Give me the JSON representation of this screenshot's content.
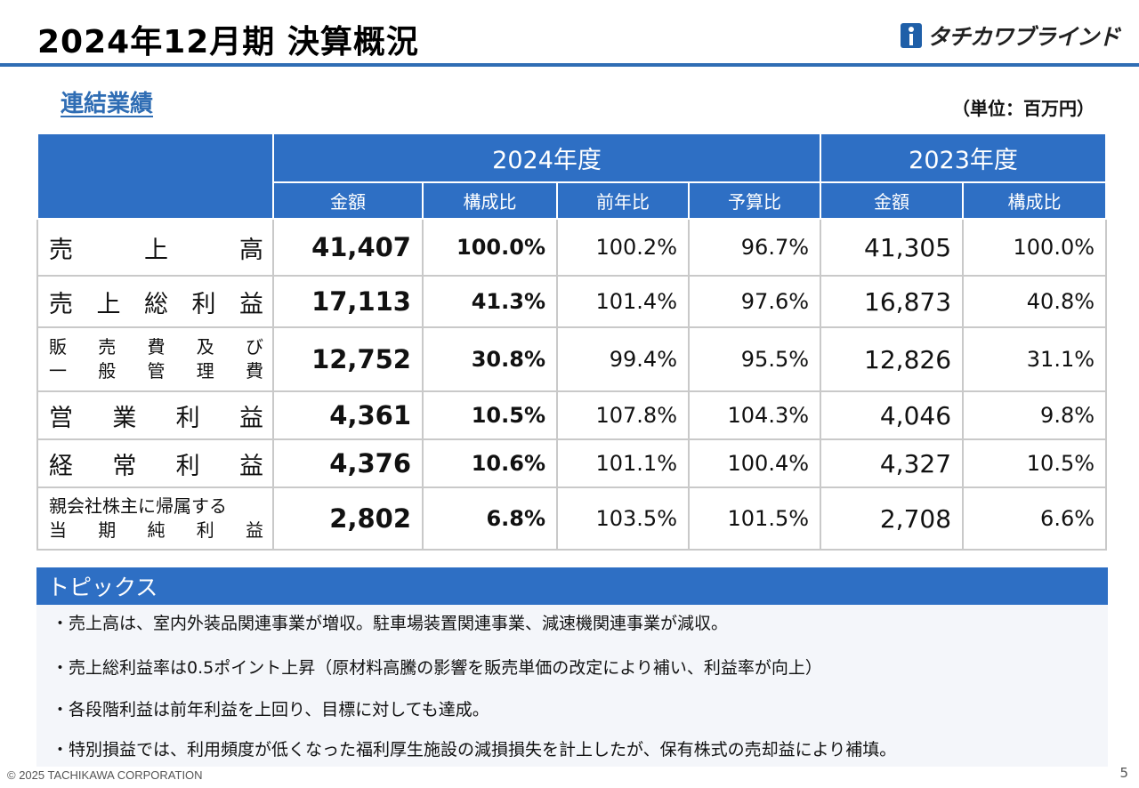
{
  "header": {
    "title": "2024年12月期 決算概況",
    "logo_text": "タチカワブラインド",
    "logo_icon": "tachikawa-logo-mark"
  },
  "section": {
    "heading": "連結業績",
    "unit": "（単位：百万円）"
  },
  "table": {
    "group_headers": [
      "2024年度",
      "2023年度"
    ],
    "sub_headers": [
      "金額",
      "構成比",
      "前年比",
      "予算比",
      "金額",
      "構成比"
    ],
    "rows": [
      {
        "label_lines": [
          [
            "売",
            "上",
            "高"
          ]
        ],
        "amount": "41,407",
        "ratio": "100.0%",
        "yoy": "100.2%",
        "vs_budget": "96.7%",
        "prev_amount": "41,305",
        "prev_ratio": "100.0%"
      },
      {
        "label_lines": [
          [
            "売",
            "上",
            "総",
            "利",
            "益"
          ]
        ],
        "amount": "17,113",
        "ratio": "41.3%",
        "yoy": "101.4%",
        "vs_budget": "97.6%",
        "prev_amount": "16,873",
        "prev_ratio": "40.8%"
      },
      {
        "label_lines": [
          [
            "販",
            "売",
            "費",
            "及",
            "び"
          ],
          [
            "一",
            "般",
            "管",
            "理",
            "費"
          ]
        ],
        "amount": "12,752",
        "ratio": "30.8%",
        "yoy": "99.4%",
        "vs_budget": "95.5%",
        "prev_amount": "12,826",
        "prev_ratio": "31.1%"
      },
      {
        "label_lines": [
          [
            "営",
            "業",
            "利",
            "益"
          ]
        ],
        "amount": "4,361",
        "ratio": "10.5%",
        "yoy": "107.8%",
        "vs_budget": "104.3%",
        "prev_amount": "4,046",
        "prev_ratio": "9.8%"
      },
      {
        "label_lines": [
          [
            "経",
            "常",
            "利",
            "益"
          ]
        ],
        "amount": "4,376",
        "ratio": "10.6%",
        "yoy": "101.1%",
        "vs_budget": "100.4%",
        "prev_amount": "4,327",
        "prev_ratio": "10.5%"
      },
      {
        "label_lines": [
          [
            "親会社株主に帰属する"
          ],
          [
            "当",
            "期",
            "純",
            "利",
            "益"
          ]
        ],
        "amount": "2,802",
        "ratio": "6.8%",
        "yoy": "103.5%",
        "vs_budget": "101.5%",
        "prev_amount": "2,708",
        "prev_ratio": "6.6%"
      }
    ]
  },
  "topics": {
    "heading": "トピックス",
    "items": [
      "・売上高は、室内外装品関連事業が増収。駐車場装置関連事業、減速機関連事業が減収。",
      "・売上総利益率は0.5ポイント上昇（原材料高騰の影響を販売単価の改定により補い、利益率が向上）",
      "・各段階利益は前年利益を上回り、目標に対しても達成。",
      "・特別損益では、利用頻度が低くなった福利厚生施設の減損損失を計上したが、保有株式の売却益により補填。"
    ]
  },
  "footer": {
    "copyright": "© 2025 TACHIKAWA CORPORATION",
    "page": "5"
  }
}
